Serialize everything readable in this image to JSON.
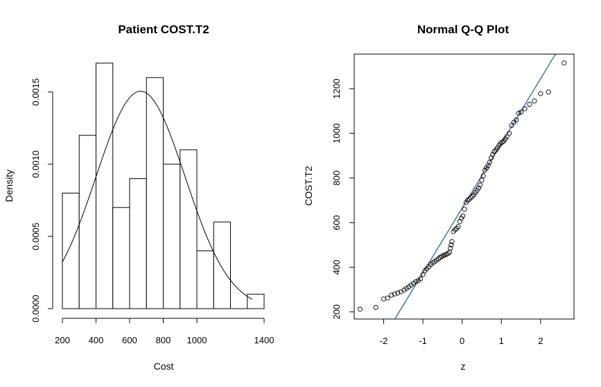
{
  "chart_data": [
    {
      "type": "bar",
      "subtype": "histogram",
      "title": "Patient COST.T2",
      "xlabel": "Cost",
      "ylabel": "Density",
      "xlim": [
        200,
        1400
      ],
      "ylim": [
        0,
        0.0017
      ],
      "x_ticks": [
        200,
        400,
        600,
        800,
        1000,
        1400
      ],
      "x_tick_labels": [
        "200",
        "400",
        "600",
        "800",
        "1000",
        "1400"
      ],
      "y_ticks": [
        0,
        0.0005,
        0.001,
        0.0015
      ],
      "y_tick_labels": [
        "0.0000",
        "0.0005",
        "0.0010",
        "0.0015"
      ],
      "bins": [
        {
          "from": 200,
          "to": 300,
          "density": 0.0008
        },
        {
          "from": 300,
          "to": 400,
          "density": 0.0012
        },
        {
          "from": 400,
          "to": 500,
          "density": 0.0017
        },
        {
          "from": 500,
          "to": 600,
          "density": 0.0007
        },
        {
          "from": 600,
          "to": 700,
          "density": 0.0009
        },
        {
          "from": 700,
          "to": 800,
          "density": 0.0016
        },
        {
          "from": 800,
          "to": 900,
          "density": 0.001
        },
        {
          "from": 900,
          "to": 1000,
          "density": 0.0011
        },
        {
          "from": 1000,
          "to": 1100,
          "density": 0.0004
        },
        {
          "from": 1100,
          "to": 1200,
          "density": 0.0006
        },
        {
          "from": 1200,
          "to": 1300,
          "density": 0
        },
        {
          "from": 1300,
          "to": 1400,
          "density": 0.0001
        }
      ],
      "normal_curve": {
        "mean": 665,
        "sd": 265,
        "x_range": [
          200,
          1330
        ]
      }
    },
    {
      "type": "scatter",
      "subtype": "normal-qq",
      "title": "Normal Q-Q Plot",
      "xlabel": "z",
      "ylabel": "COST.T2",
      "xlim": [
        -2.75,
        2.85
      ],
      "ylim": [
        168,
        1355
      ],
      "x_ticks": [
        -2,
        -1,
        0,
        1,
        2
      ],
      "x_tick_labels": [
        "-2",
        "-1",
        "0",
        "1",
        "2"
      ],
      "y_ticks": [
        200,
        400,
        600,
        800,
        1000,
        1200
      ],
      "y_tick_labels": [
        "200",
        "400",
        "600",
        "800",
        "1000",
        "1200"
      ],
      "reference_line": {
        "intercept": 665,
        "slope": 290
      },
      "points": [
        [
          -2.6,
          212
        ],
        [
          -2.2,
          220
        ],
        [
          -2.0,
          258
        ],
        [
          -1.9,
          262
        ],
        [
          -1.8,
          275
        ],
        [
          -1.72,
          280
        ],
        [
          -1.64,
          285
        ],
        [
          -1.56,
          290
        ],
        [
          -1.48,
          298
        ],
        [
          -1.42,
          305
        ],
        [
          -1.36,
          312
        ],
        [
          -1.3,
          320
        ],
        [
          -1.24,
          328
        ],
        [
          -1.18,
          335
        ],
        [
          -1.12,
          340
        ],
        [
          -1.06,
          348
        ],
        [
          -1.0,
          368
        ],
        [
          -0.95,
          384
        ],
        [
          -0.9,
          393
        ],
        [
          -0.85,
          402
        ],
        [
          -0.8,
          412
        ],
        [
          -0.75,
          420
        ],
        [
          -0.7,
          425
        ],
        [
          -0.65,
          432
        ],
        [
          -0.6,
          438
        ],
        [
          -0.56,
          444
        ],
        [
          -0.52,
          448
        ],
        [
          -0.48,
          452
        ],
        [
          -0.44,
          455
        ],
        [
          -0.4,
          458
        ],
        [
          -0.36,
          462
        ],
        [
          -0.32,
          468
        ],
        [
          -0.3,
          485
        ],
        [
          -0.28,
          500
        ],
        [
          -0.26,
          515
        ],
        [
          -0.22,
          560
        ],
        [
          -0.18,
          568
        ],
        [
          -0.14,
          574
        ],
        [
          -0.1,
          582
        ],
        [
          -0.06,
          605
        ],
        [
          -0.02,
          620
        ],
        [
          0.02,
          630
        ],
        [
          0.06,
          660
        ],
        [
          0.1,
          690
        ],
        [
          0.14,
          700
        ],
        [
          0.18,
          705
        ],
        [
          0.22,
          712
        ],
        [
          0.26,
          718
        ],
        [
          0.3,
          725
        ],
        [
          0.34,
          735
        ],
        [
          0.38,
          745
        ],
        [
          0.42,
          755
        ],
        [
          0.46,
          768
        ],
        [
          0.5,
          790
        ],
        [
          0.54,
          810
        ],
        [
          0.58,
          835
        ],
        [
          0.62,
          845
        ],
        [
          0.66,
          855
        ],
        [
          0.7,
          870
        ],
        [
          0.74,
          890
        ],
        [
          0.78,
          905
        ],
        [
          0.82,
          918
        ],
        [
          0.86,
          925
        ],
        [
          0.9,
          935
        ],
        [
          0.94,
          945
        ],
        [
          0.98,
          955
        ],
        [
          1.02,
          960
        ],
        [
          1.06,
          965
        ],
        [
          1.1,
          975
        ],
        [
          1.14,
          985
        ],
        [
          1.2,
          1000
        ],
        [
          1.26,
          1035
        ],
        [
          1.32,
          1050
        ],
        [
          1.38,
          1060
        ],
        [
          1.44,
          1090
        ],
        [
          1.5,
          1095
        ],
        [
          1.6,
          1110
        ],
        [
          1.72,
          1130
        ],
        [
          1.84,
          1145
        ],
        [
          2.0,
          1178
        ],
        [
          2.2,
          1185
        ],
        [
          2.6,
          1315
        ]
      ]
    }
  ]
}
